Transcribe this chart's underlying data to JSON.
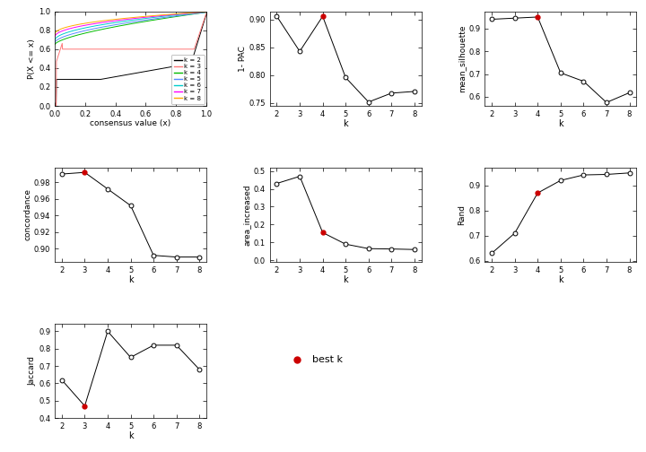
{
  "k_values": [
    2,
    3,
    4,
    5,
    6,
    7,
    8
  ],
  "pac_1minus": [
    0.906,
    0.843,
    0.906,
    0.796,
    0.752,
    0.768,
    0.771
  ],
  "pac_best_k": 4,
  "mean_silhouette": [
    0.94,
    0.945,
    0.95,
    0.705,
    0.668,
    0.575,
    0.618
  ],
  "sil_best_k": 4,
  "concordance": [
    0.99,
    0.992,
    0.972,
    0.952,
    0.892,
    0.89,
    0.89
  ],
  "conc_best_k": 3,
  "area_increased": [
    0.43,
    0.47,
    0.155,
    0.09,
    0.065,
    0.063,
    0.06
  ],
  "area_best_k": 4,
  "rand": [
    0.63,
    0.71,
    0.87,
    0.92,
    0.942,
    0.944,
    0.95
  ],
  "rand_best_k": 4,
  "jaccard": [
    0.62,
    0.47,
    0.9,
    0.75,
    0.82,
    0.82,
    0.68
  ],
  "jacc_best_k": 3,
  "ecdf_colors": [
    "#000000",
    "#ff7777",
    "#00bb00",
    "#5588ff",
    "#00cccc",
    "#ff00ff",
    "#ffaa00"
  ],
  "ecdf_labels": [
    "k = 2",
    "k = 3",
    "k = 4",
    "k = 5",
    "k = 6",
    "k = 7",
    "k = 8"
  ],
  "best_k_color": "#cc0000",
  "line_color": "#000000",
  "bg_color": "#ffffff"
}
